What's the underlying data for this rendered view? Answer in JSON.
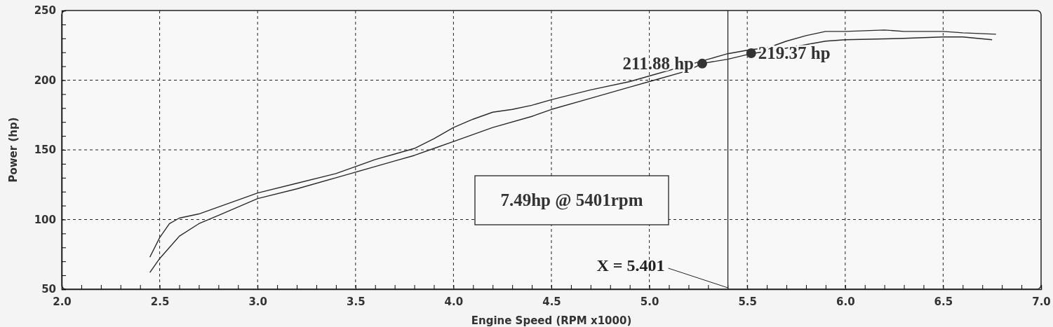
{
  "chart_data": {
    "type": "line",
    "xlabel": "Engine Speed (RPM x1000)",
    "ylabel": "Power (hp)",
    "xlim": [
      2.0,
      7.0
    ],
    "ylim": [
      50,
      250
    ],
    "xticks": [
      {
        "value": 2.0,
        "label": "2.0"
      },
      {
        "value": 2.1,
        "label": null
      },
      {
        "value": 2.2,
        "label": null
      },
      {
        "value": 2.3,
        "label": null
      },
      {
        "value": 2.4,
        "label": null
      },
      {
        "value": 2.5,
        "label": "2.5"
      },
      {
        "value": 2.6,
        "label": null
      },
      {
        "value": 2.7,
        "label": null
      },
      {
        "value": 2.8,
        "label": null
      },
      {
        "value": 2.9,
        "label": null
      },
      {
        "value": 3.0,
        "label": "3.0"
      },
      {
        "value": 3.1,
        "label": null
      },
      {
        "value": 3.2,
        "label": null
      },
      {
        "value": 3.3,
        "label": null
      },
      {
        "value": 3.4,
        "label": null
      },
      {
        "value": 3.5,
        "label": "3.5"
      },
      {
        "value": 3.6,
        "label": null
      },
      {
        "value": 3.7,
        "label": null
      },
      {
        "value": 3.8,
        "label": null
      },
      {
        "value": 3.9,
        "label": null
      },
      {
        "value": 4.0,
        "label": "4.0"
      },
      {
        "value": 4.1,
        "label": null
      },
      {
        "value": 4.2,
        "label": null
      },
      {
        "value": 4.3,
        "label": null
      },
      {
        "value": 4.4,
        "label": null
      },
      {
        "value": 4.5,
        "label": "4.5"
      },
      {
        "value": 4.6,
        "label": null
      },
      {
        "value": 4.7,
        "label": null
      },
      {
        "value": 4.8,
        "label": null
      },
      {
        "value": 4.9,
        "label": null
      },
      {
        "value": 5.0,
        "label": "5.0"
      },
      {
        "value": 5.1,
        "label": null
      },
      {
        "value": 5.2,
        "label": null
      },
      {
        "value": 5.3,
        "label": null
      },
      {
        "value": 5.4,
        "label": null
      },
      {
        "value": 5.5,
        "label": "5.5"
      },
      {
        "value": 5.6,
        "label": null
      },
      {
        "value": 5.7,
        "label": null
      },
      {
        "value": 5.8,
        "label": null
      },
      {
        "value": 5.9,
        "label": null
      },
      {
        "value": 6.0,
        "label": "6.0"
      },
      {
        "value": 6.1,
        "label": null
      },
      {
        "value": 6.2,
        "label": null
      },
      {
        "value": 6.3,
        "label": null
      },
      {
        "value": 6.4,
        "label": null
      },
      {
        "value": 6.5,
        "label": "6.5"
      },
      {
        "value": 6.6,
        "label": null
      },
      {
        "value": 6.7,
        "label": null
      },
      {
        "value": 6.8,
        "label": null
      },
      {
        "value": 6.9,
        "label": null
      },
      {
        "value": 7.0,
        "label": "7.0"
      }
    ],
    "yticks": [
      50,
      {
        "value": 60,
        "label": null
      },
      {
        "value": 70,
        "label": null
      },
      {
        "value": 80,
        "label": null
      },
      {
        "value": 90,
        "label": null
      },
      100,
      {
        "value": 110,
        "label": null
      },
      {
        "value": 120,
        "label": null
      },
      {
        "value": 130,
        "label": null
      },
      {
        "value": 140,
        "label": null
      },
      150,
      {
        "value": 160,
        "label": null
      },
      {
        "value": 170,
        "label": null
      },
      {
        "value": 180,
        "label": null
      },
      {
        "value": 190,
        "label": null
      },
      200,
      {
        "value": 210,
        "label": null
      },
      {
        "value": 220,
        "label": null
      },
      {
        "value": 230,
        "label": null
      },
      {
        "value": 240,
        "label": null
      },
      250
    ],
    "grid": true,
    "series": [
      {
        "color": "#2a2a2a",
        "x": [
          2.45,
          2.5,
          2.55,
          2.6,
          2.7,
          2.8,
          2.9,
          3.0,
          3.2,
          3.4,
          3.5,
          3.6,
          3.7,
          3.8,
          3.9,
          4.0,
          4.1,
          4.2,
          4.3,
          4.4,
          4.5,
          4.7,
          4.9,
          5.0,
          5.2,
          5.3,
          5.4,
          5.52,
          5.6,
          5.7,
          5.8,
          5.9,
          6.0,
          6.2,
          6.3,
          6.5,
          6.6,
          6.77
        ],
        "values": [
          73,
          87,
          97,
          101,
          104,
          109,
          114,
          119,
          126,
          133,
          138,
          143,
          147,
          151,
          158,
          166,
          172,
          177,
          179,
          182,
          186,
          193,
          199,
          203,
          211,
          215,
          219,
          222,
          223,
          228,
          232,
          235,
          235,
          236,
          235,
          235,
          234,
          233
        ]
      },
      {
        "color": "#2a2a2a",
        "x": [
          2.45,
          2.5,
          2.6,
          2.7,
          2.8,
          2.9,
          3.0,
          3.2,
          3.4,
          3.5,
          3.6,
          3.7,
          3.8,
          3.9,
          4.0,
          4.2,
          4.4,
          4.5,
          4.7,
          4.9,
          5.0,
          5.2,
          5.27,
          5.4,
          5.52,
          5.7,
          5.9,
          6.0,
          6.3,
          6.5,
          6.6,
          6.75
        ],
        "values": [
          62,
          72,
          88,
          97,
          103,
          109,
          115,
          122,
          130,
          134,
          138,
          142,
          146,
          151,
          156,
          166,
          174,
          179,
          187,
          195,
          199,
          207,
          212,
          215,
          219,
          223,
          228,
          229,
          230,
          231,
          231,
          229
        ]
      }
    ],
    "ref_lines": [
      {
        "axis": "x",
        "value": 5.401,
        "label": "X = 5.401",
        "color": "#2a2a2a"
      }
    ],
    "annotations": [
      {
        "text": "211.88 hp",
        "x": 5.27,
        "y": 211.88
      },
      {
        "text": "219.37 hp",
        "x": 5.52,
        "y": 219.37
      },
      "7.49hp @ 5401rpm"
    ]
  }
}
